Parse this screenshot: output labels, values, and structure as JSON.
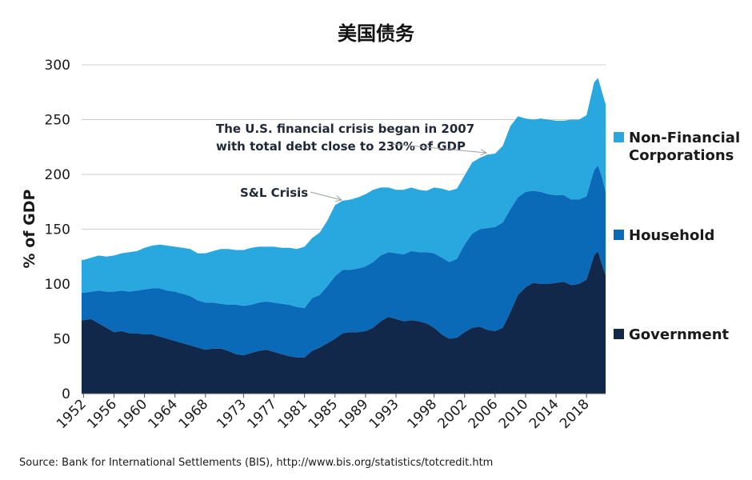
{
  "chart_data": {
    "type": "area",
    "title": "美国债务",
    "xlabel": "",
    "ylabel": "% of GDP",
    "ylim": [
      0,
      300
    ],
    "yticks": [
      0,
      50,
      100,
      150,
      200,
      250,
      300
    ],
    "xlim": [
      1951.75,
      2020.5
    ],
    "xticks": [
      1952,
      1956,
      1960,
      1964,
      1968,
      1973,
      1977,
      1981,
      1985,
      1989,
      1993,
      1998,
      2002,
      2006,
      2010,
      2014,
      2018
    ],
    "stacked": true,
    "legend_position": "right",
    "x": [
      1951.75,
      1952,
      1953,
      1954,
      1955,
      1956,
      1957,
      1958,
      1959,
      1960,
      1961,
      1962,
      1963,
      1964,
      1965,
      1966,
      1967,
      1968,
      1969,
      1970,
      1971,
      1972,
      1973,
      1974,
      1975,
      1976,
      1977,
      1978,
      1979,
      1980,
      1981,
      1982,
      1983,
      1984,
      1985,
      1986,
      1987,
      1988,
      1989,
      1990,
      1991,
      1992,
      1993,
      1994,
      1995,
      1996,
      1997,
      1998,
      1999,
      2000,
      2001,
      2002,
      2003,
      2004,
      2005,
      2006,
      2007,
      2008,
      2009,
      2010,
      2011,
      2012,
      2013,
      2014,
      2015,
      2016,
      2017,
      2018,
      2019,
      2019.5,
      2020,
      2020.5
    ],
    "series": [
      {
        "name": "Government",
        "color": "#12284a",
        "values": [
          67,
          67,
          68,
          64,
          60,
          56,
          57,
          55,
          55,
          54,
          54,
          52,
          50,
          48,
          46,
          44,
          42,
          40,
          41,
          41,
          39,
          36,
          35,
          37,
          39,
          40,
          38,
          36,
          34,
          33,
          33,
          39,
          42,
          46,
          50,
          55,
          56,
          56,
          57,
          60,
          66,
          70,
          68,
          66,
          67,
          66,
          64,
          60,
          54,
          50,
          51,
          56,
          60,
          61,
          58,
          57,
          60,
          74,
          90,
          97,
          101,
          100,
          100,
          101,
          102,
          99,
          100,
          104,
          126,
          130,
          118,
          108
        ]
      },
      {
        "name": "Household",
        "color": "#0a6ab8",
        "values": [
          25,
          25,
          25,
          30,
          33,
          37,
          37,
          38,
          39,
          41,
          42,
          44,
          44,
          45,
          45,
          45,
          43,
          43,
          42,
          41,
          42,
          45,
          45,
          44,
          44,
          44,
          45,
          46,
          47,
          46,
          45,
          48,
          48,
          52,
          57,
          58,
          57,
          58,
          59,
          60,
          60,
          59,
          60,
          61,
          63,
          63,
          65,
          68,
          70,
          70,
          72,
          80,
          86,
          89,
          93,
          95,
          96,
          94,
          89,
          87,
          84,
          84,
          82,
          80,
          79,
          78,
          77,
          76,
          78,
          78,
          80,
          76
        ]
      },
      {
        "name": "Non-Financial Corporations",
        "color": "#29a8e0",
        "values": [
          30,
          30,
          31,
          32,
          32,
          33,
          34,
          36,
          36,
          38,
          39,
          40,
          41,
          41,
          42,
          43,
          43,
          45,
          47,
          50,
          51,
          50,
          51,
          52,
          51,
          50,
          51,
          51,
          52,
          53,
          56,
          55,
          57,
          60,
          65,
          63,
          64,
          65,
          66,
          66,
          62,
          59,
          58,
          59,
          58,
          57,
          56,
          60,
          63,
          65,
          64,
          63,
          65,
          65,
          67,
          67,
          70,
          76,
          74,
          67,
          65,
          67,
          68,
          68,
          68,
          73,
          73,
          74,
          80,
          80,
          78,
          80
        ]
      }
    ],
    "annotations": [
      {
        "lines": [
          "The U.S. financial crisis began in 2007",
          "with total debt close to 230% of GDP"
        ]
      },
      {
        "lines": [
          "S&L Crisis"
        ]
      }
    ]
  },
  "legend": [
    {
      "lines": [
        "Non-Financial",
        "Corporations"
      ],
      "color": "#29a8e0"
    },
    {
      "lines": [
        "Household"
      ],
      "color": "#0a6ab8"
    },
    {
      "lines": [
        "Government"
      ],
      "color": "#12284a"
    }
  ],
  "source": "Source: Bank for International Settlements (BIS), http://www.bis.org/statistics/totcredit.htm"
}
